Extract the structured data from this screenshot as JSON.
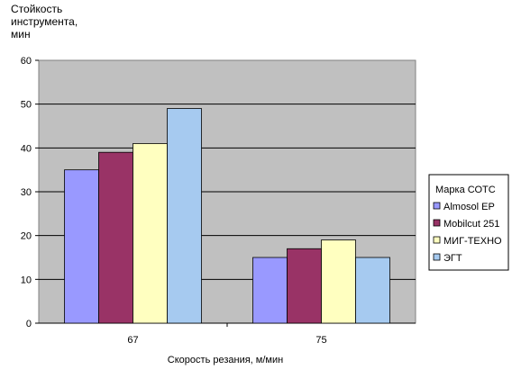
{
  "chart_data": {
    "type": "bar",
    "ylabel_lines": [
      "Стойкость",
      "инструмента,",
      "мин"
    ],
    "xlabel": "Скорость резания, м/мин",
    "categories": [
      "67",
      "75"
    ],
    "yticks": [
      "0",
      "10",
      "20",
      "30",
      "40",
      "50",
      "60"
    ],
    "ylim": [
      0,
      60
    ],
    "grid": true,
    "legend": {
      "title": "Марка СОТС",
      "placement": "right"
    },
    "series": [
      {
        "name": "Almosol EP",
        "color": "#9999ff",
        "values": [
          35,
          15
        ]
      },
      {
        "name": "Mobilcut 251",
        "color": "#993366",
        "values": [
          39,
          17
        ]
      },
      {
        "name": "МИГ-ТЕХНО",
        "color": "#ffffc0",
        "values": [
          41,
          19
        ]
      },
      {
        "name": "ЭГТ",
        "color": "#a6caf0",
        "values": [
          49,
          15
        ]
      }
    ],
    "plot_background": "#c0c0c0"
  }
}
